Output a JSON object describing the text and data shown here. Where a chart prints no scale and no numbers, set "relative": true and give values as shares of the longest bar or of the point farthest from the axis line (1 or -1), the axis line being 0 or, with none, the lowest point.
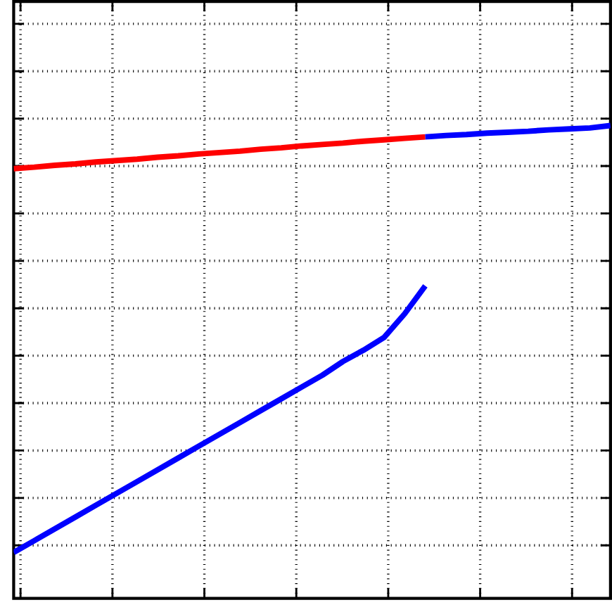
{
  "chart_data": {
    "type": "line",
    "relative": true,
    "grid": true,
    "marker": "none",
    "line_style": "solid",
    "categories": [
      null,
      null,
      null,
      null,
      null,
      null,
      null,
      null,
      null,
      null,
      null,
      null,
      null,
      null,
      null,
      null,
      null,
      null,
      null,
      null,
      null,
      null,
      null,
      null,
      null,
      null,
      null,
      null,
      null,
      null
    ],
    "series": [
      {
        "color": "#ff0000",
        "values": [
          0.909,
          0.912,
          0.916,
          0.919,
          0.923,
          0.926,
          0.929,
          0.933,
          0.936,
          0.94,
          0.943,
          0.946,
          0.95,
          0.953,
          0.957,
          0.96,
          0.963,
          0.967,
          0.97,
          0.973,
          0.976,
          null,
          null,
          null,
          null,
          null,
          null,
          null,
          null,
          null
        ]
      },
      {
        "color": "#0000ff",
        "values": [
          null,
          null,
          null,
          null,
          null,
          null,
          null,
          null,
          null,
          null,
          null,
          null,
          null,
          null,
          null,
          null,
          null,
          null,
          null,
          null,
          0.976,
          0.979,
          0.981,
          0.984,
          0.986,
          0.988,
          0.991,
          0.993,
          0.995,
          1.0
        ]
      },
      {
        "color": "#0000ff",
        "values": [
          0.097,
          0.122,
          0.147,
          0.172,
          0.197,
          0.222,
          0.247,
          0.272,
          0.297,
          0.322,
          0.347,
          0.372,
          0.397,
          0.422,
          0.447,
          0.472,
          0.501,
          0.525,
          0.552,
          0.602,
          0.661,
          null,
          null,
          null,
          null,
          null,
          null,
          null,
          null,
          null
        ]
      }
    ]
  }
}
